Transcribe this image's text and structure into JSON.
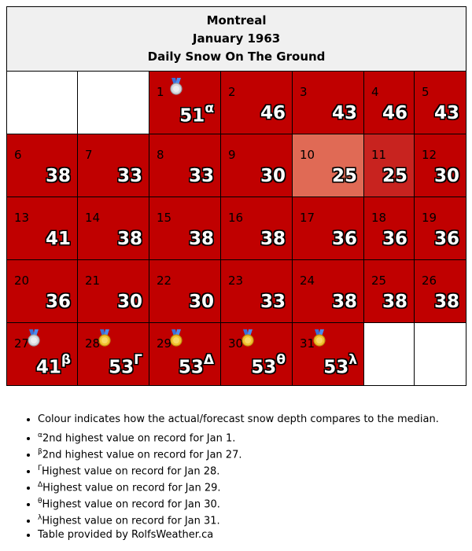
{
  "title": {
    "city": "Montreal",
    "month": "January 1963",
    "subtitle": "Daily Snow On The Ground"
  },
  "colors": {
    "below_median_dark": "#c00000",
    "light": "#e06a55",
    "mid": "#c8231f",
    "empty": "#ffffff",
    "header_bg": "#f0f0f0"
  },
  "weeks": [
    [
      {
        "empty": true
      },
      {
        "empty": true
      },
      {
        "day": "1",
        "value": "51",
        "sup": "α",
        "medal": "silver",
        "color": "#c00000"
      },
      {
        "day": "2",
        "value": "46",
        "color": "#c00000"
      },
      {
        "day": "3",
        "value": "43",
        "color": "#c00000"
      },
      {
        "day": "4",
        "value": "46",
        "color": "#c00000"
      },
      {
        "day": "5",
        "value": "43",
        "color": "#c00000"
      }
    ],
    [
      {
        "day": "6",
        "value": "38",
        "color": "#c00000"
      },
      {
        "day": "7",
        "value": "33",
        "color": "#c00000"
      },
      {
        "day": "8",
        "value": "33",
        "color": "#c00000"
      },
      {
        "day": "9",
        "value": "30",
        "color": "#c00000"
      },
      {
        "day": "10",
        "value": "25",
        "color": "#e06a55"
      },
      {
        "day": "11",
        "value": "25",
        "color": "#c8231f"
      },
      {
        "day": "12",
        "value": "30",
        "color": "#c00000"
      }
    ],
    [
      {
        "day": "13",
        "value": "41",
        "color": "#c00000"
      },
      {
        "day": "14",
        "value": "38",
        "color": "#c00000"
      },
      {
        "day": "15",
        "value": "38",
        "color": "#c00000"
      },
      {
        "day": "16",
        "value": "38",
        "color": "#c00000"
      },
      {
        "day": "17",
        "value": "36",
        "color": "#c00000"
      },
      {
        "day": "18",
        "value": "36",
        "color": "#c00000"
      },
      {
        "day": "19",
        "value": "36",
        "color": "#c00000"
      }
    ],
    [
      {
        "day": "20",
        "value": "36",
        "color": "#c00000"
      },
      {
        "day": "21",
        "value": "30",
        "color": "#c00000"
      },
      {
        "day": "22",
        "value": "30",
        "color": "#c00000"
      },
      {
        "day": "23",
        "value": "33",
        "color": "#c00000"
      },
      {
        "day": "24",
        "value": "38",
        "color": "#c00000"
      },
      {
        "day": "25",
        "value": "38",
        "color": "#c00000"
      },
      {
        "day": "26",
        "value": "38",
        "color": "#c00000"
      }
    ],
    [
      {
        "day": "27",
        "value": "41",
        "sup": "β",
        "medal": "silver",
        "color": "#c00000"
      },
      {
        "day": "28",
        "value": "53",
        "sup": "Γ",
        "medal": "gold",
        "color": "#c00000"
      },
      {
        "day": "29",
        "value": "53",
        "sup": "Δ",
        "medal": "gold",
        "color": "#c00000"
      },
      {
        "day": "30",
        "value": "53",
        "sup": "θ",
        "medal": "gold",
        "color": "#c00000"
      },
      {
        "day": "31",
        "value": "53",
        "sup": "λ",
        "medal": "gold",
        "color": "#c00000"
      },
      {
        "empty": true
      },
      {
        "empty": true
      }
    ]
  ],
  "notes": [
    {
      "sup": "",
      "text": "Colour indicates how the actual/forecast snow depth compares to the median."
    },
    {
      "sup": "α",
      "text": "2nd highest value on record for Jan 1."
    },
    {
      "sup": "β",
      "text": "2nd highest value on record for Jan 27."
    },
    {
      "sup": "Γ",
      "text": "Highest value on record for Jan 28."
    },
    {
      "sup": "Δ",
      "text": "Highest value on record for Jan 29."
    },
    {
      "sup": "θ",
      "text": "Highest value on record for Jan 30."
    },
    {
      "sup": "λ",
      "text": "Highest value on record for Jan 31."
    },
    {
      "sup": "",
      "text": "Table provided by RolfsWeather.ca"
    }
  ]
}
